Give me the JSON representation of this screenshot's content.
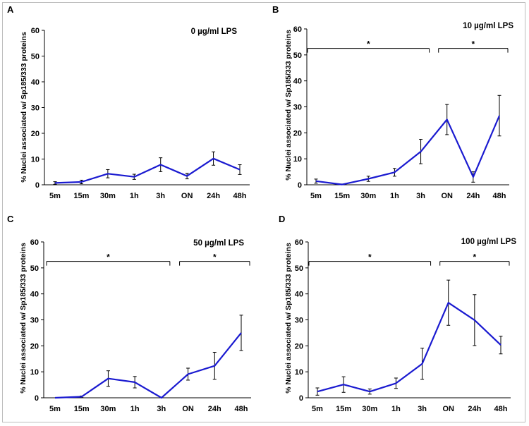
{
  "style": {
    "line_color": "#1a1ad0",
    "axis_color": "#000000"
  },
  "chart_data": [
    {
      "type": "line",
      "panel_label": "A",
      "title": "0 µg/ml LPS",
      "ylabel": "% Nuclei associated w/ Sp185/333 proteins",
      "ylim": [
        0,
        60
      ],
      "yticks": [
        0,
        10,
        20,
        30,
        40,
        50,
        60
      ],
      "categories": [
        "5m",
        "15m",
        "30m",
        "1h",
        "3h",
        "ON",
        "24h",
        "48h"
      ],
      "values": [
        0.7,
        1.1,
        4.3,
        3.1,
        7.8,
        3.4,
        10.2,
        5.9
      ],
      "errors": [
        0.5,
        0.7,
        1.6,
        1.0,
        2.7,
        1.1,
        2.6,
        1.9
      ],
      "significance": []
    },
    {
      "type": "line",
      "panel_label": "B",
      "title": "10 µg/ml LPS",
      "ylabel": "% Nuclei associated w/ Sp185/333 proteins",
      "ylim": [
        0,
        60
      ],
      "yticks": [
        0,
        10,
        20,
        30,
        40,
        50,
        60
      ],
      "categories": [
        "5m",
        "15m",
        "30m",
        "1h",
        "3h",
        "ON",
        "24h",
        "48h"
      ],
      "values": [
        1.4,
        0.1,
        2.3,
        4.8,
        12.8,
        25.1,
        3.0,
        26.6
      ],
      "errors": [
        0.8,
        0.2,
        1.0,
        1.5,
        4.7,
        5.8,
        2.0,
        7.8
      ],
      "significance": [
        {
          "from": 0,
          "to": 4,
          "y": 52.5,
          "label": "*"
        },
        {
          "from": 5,
          "to": 7,
          "y": 52.5,
          "label": "*"
        }
      ]
    },
    {
      "type": "line",
      "panel_label": "C",
      "title": "50 µg/ml LPS",
      "ylabel": "% Nuclei associated w/ Sp185/333 proteins",
      "ylim": [
        0,
        60
      ],
      "yticks": [
        0,
        10,
        20,
        30,
        40,
        50,
        60
      ],
      "categories": [
        "5m",
        "15m",
        "30m",
        "1h",
        "3h",
        "ON",
        "24h",
        "48h"
      ],
      "values": [
        0.0,
        0.4,
        7.4,
        6.0,
        0.0,
        9.1,
        12.3,
        25.0
      ],
      "errors": [
        0.0,
        0.3,
        3.0,
        2.2,
        0.0,
        2.3,
        5.2,
        6.8
      ],
      "significance": [
        {
          "from": 0,
          "to": 4,
          "y": 52.5,
          "label": "*"
        },
        {
          "from": 5,
          "to": 7,
          "y": 52.5,
          "label": "*"
        }
      ]
    },
    {
      "type": "line",
      "panel_label": "D",
      "title": "100 µg/ml LPS",
      "ylabel": "% Nuclei associated w/ Sp185/333 proteins",
      "ylim": [
        0,
        60
      ],
      "yticks": [
        0,
        10,
        20,
        30,
        40,
        50,
        60
      ],
      "categories": [
        "5m",
        "15m",
        "30m",
        "1h",
        "3h",
        "ON",
        "24h",
        "48h"
      ],
      "values": [
        2.4,
        5.1,
        2.4,
        5.6,
        13.1,
        36.6,
        29.9,
        20.3
      ],
      "errors": [
        1.4,
        3.0,
        1.0,
        2.0,
        6.0,
        8.7,
        9.8,
        3.4
      ],
      "significance": [
        {
          "from": 0,
          "to": 4,
          "y": 52.5,
          "label": "*"
        },
        {
          "from": 5,
          "to": 7,
          "y": 52.5,
          "label": "*"
        }
      ]
    }
  ]
}
